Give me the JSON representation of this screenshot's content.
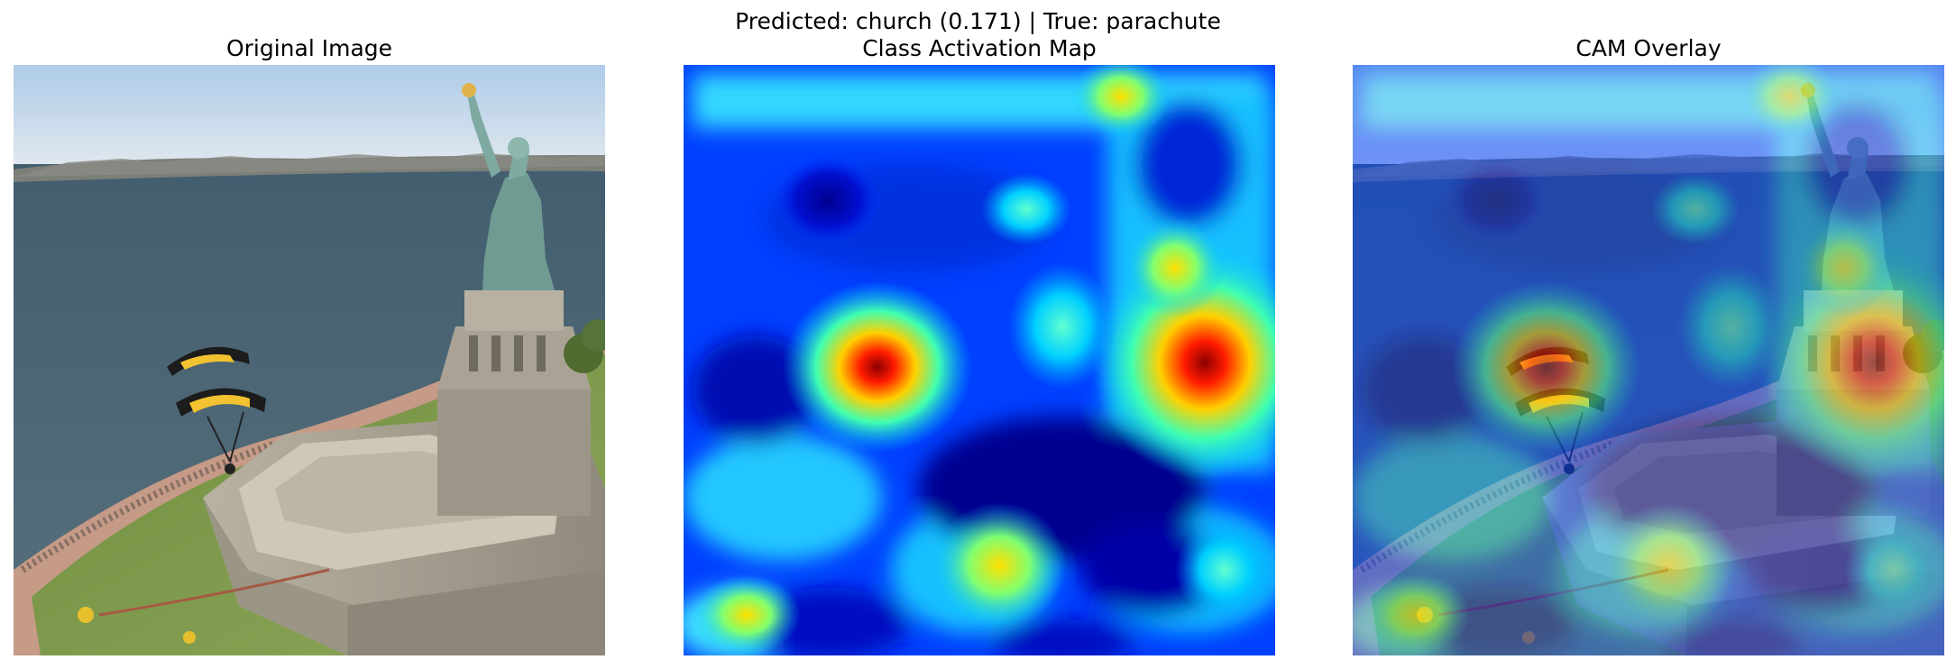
{
  "figure": {
    "suptitle": "Predicted: church (0.171) | True: parachute"
  },
  "panels": [
    {
      "title": "Original Image"
    },
    {
      "title": "Class Activation Map"
    },
    {
      "title": "CAM Overlay"
    }
  ],
  "colors": {
    "cam_low": "#00008f",
    "cam_mid": "#00c8ff",
    "cam_high": "#ff1a00",
    "cam_peak": "#8a0000",
    "sky": "#c9dcf0",
    "water": "#4b6577",
    "statue": "#6f9b93",
    "lawn": "#7e9a4a",
    "stone": "#a8a191"
  }
}
